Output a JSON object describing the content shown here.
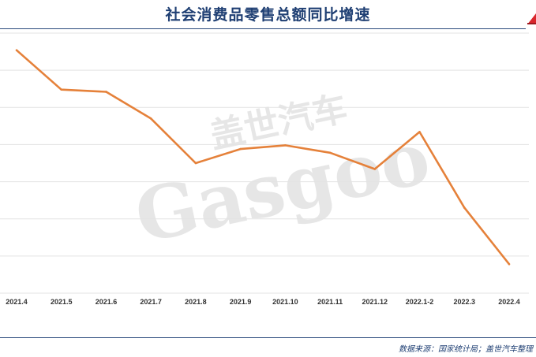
{
  "header": {
    "title": "社会消费品零售总额同比增速",
    "logo_icon": "red-triangle-logo-icon"
  },
  "footer": {
    "source": "数据来源：国家统计局；盖世汽车整理"
  },
  "watermark": {
    "brand_cn": "盖世汽车",
    "brand_en": "Gasgoo"
  },
  "colors": {
    "line": "#e5813a",
    "grid": "#e3e3e3",
    "title": "#1f3f73",
    "accent": "#d9262c"
  },
  "chart_data": {
    "type": "line",
    "title": "社会消费品零售总额同比增速",
    "xlabel": "",
    "ylabel": "",
    "categories": [
      "2021.4",
      "2021.5",
      "2021.6",
      "2021.7",
      "2021.8",
      "2021.9",
      "2021.10",
      "2021.11",
      "2021.12",
      "2022.1-2",
      "2022.3",
      "2022.4"
    ],
    "series": [
      {
        "values": [
          17.7,
          12.4,
          12.1,
          8.5,
          2.5,
          4.4,
          4.9,
          3.9,
          1.7,
          6.7,
          -3.5,
          -11.1
        ]
      }
    ],
    "ylim": [
      -15,
      20
    ],
    "yticks_visible": false,
    "grid": true,
    "legend": "none"
  }
}
